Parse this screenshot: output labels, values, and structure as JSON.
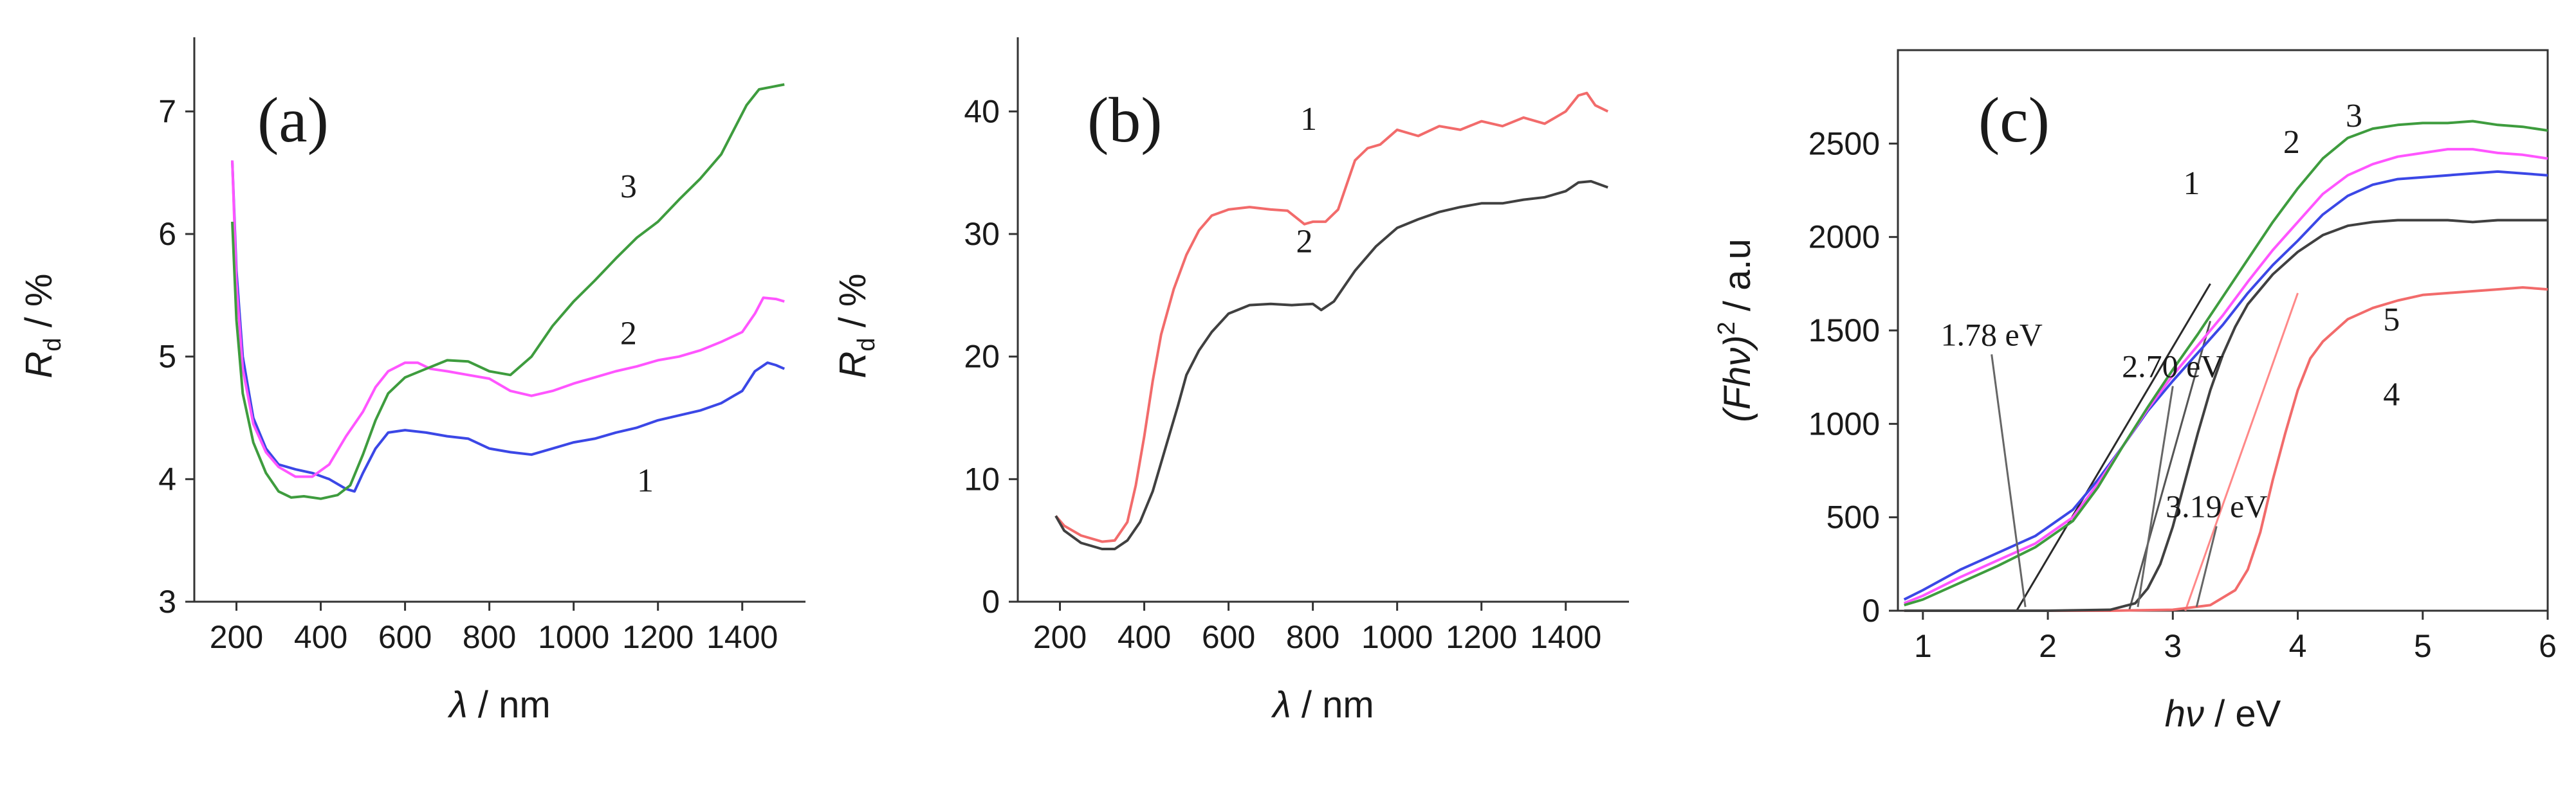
{
  "chart_data": [
    {
      "type": "line",
      "panel_label": "(a)",
      "xlabel": "λ / nm",
      "ylabel_main": "R",
      "ylabel_sub": "d",
      "ylabel_unit": " / %",
      "xlim": [
        100,
        1550
      ],
      "ylim": [
        3,
        7.5
      ],
      "xticks": [
        200,
        400,
        600,
        800,
        1000,
        1200,
        1400
      ],
      "yticks": [
        3,
        4,
        5,
        6,
        7
      ],
      "grid": false,
      "series": [
        {
          "name": "1",
          "color": "#3b47e6",
          "label_at": [
            1170,
            3.9
          ],
          "x": [
            190,
            200,
            215,
            240,
            270,
            300,
            340,
            380,
            420,
            460,
            480,
            500,
            530,
            560,
            600,
            650,
            700,
            750,
            800,
            850,
            900,
            950,
            1000,
            1050,
            1100,
            1150,
            1200,
            1250,
            1300,
            1350,
            1400,
            1430,
            1460,
            1480,
            1500
          ],
          "y": [
            6.6,
            5.7,
            5.0,
            4.5,
            4.25,
            4.12,
            4.08,
            4.05,
            4.0,
            3.92,
            3.9,
            4.05,
            4.25,
            4.38,
            4.4,
            4.38,
            4.35,
            4.33,
            4.25,
            4.22,
            4.2,
            4.25,
            4.3,
            4.33,
            4.38,
            4.42,
            4.48,
            4.52,
            4.56,
            4.62,
            4.72,
            4.88,
            4.95,
            4.93,
            4.9
          ]
        },
        {
          "name": "2",
          "color": "#ff55ff",
          "label_at": [
            1130,
            5.1
          ],
          "x": [
            190,
            200,
            215,
            240,
            270,
            300,
            340,
            380,
            420,
            460,
            500,
            530,
            560,
            600,
            630,
            660,
            700,
            750,
            800,
            850,
            900,
            950,
            1000,
            1050,
            1100,
            1150,
            1200,
            1250,
            1300,
            1350,
            1400,
            1430,
            1450,
            1480,
            1500
          ],
          "y": [
            6.6,
            5.6,
            4.9,
            4.45,
            4.22,
            4.1,
            4.02,
            4.02,
            4.12,
            4.35,
            4.55,
            4.75,
            4.88,
            4.95,
            4.95,
            4.9,
            4.88,
            4.85,
            4.82,
            4.72,
            4.68,
            4.72,
            4.78,
            4.83,
            4.88,
            4.92,
            4.97,
            5.0,
            5.05,
            5.12,
            5.2,
            5.35,
            5.48,
            5.47,
            5.45
          ]
        },
        {
          "name": "3",
          "color": "#3e9c3e",
          "label_at": [
            1130,
            6.3
          ],
          "x": [
            190,
            200,
            215,
            240,
            270,
            300,
            330,
            360,
            400,
            440,
            470,
            500,
            530,
            560,
            600,
            650,
            700,
            750,
            800,
            850,
            900,
            950,
            1000,
            1050,
            1100,
            1150,
            1200,
            1250,
            1300,
            1350,
            1380,
            1410,
            1440,
            1470,
            1500
          ],
          "y": [
            6.1,
            5.3,
            4.7,
            4.3,
            4.05,
            3.9,
            3.85,
            3.86,
            3.84,
            3.87,
            3.95,
            4.2,
            4.48,
            4.7,
            4.83,
            4.9,
            4.97,
            4.96,
            4.88,
            4.85,
            5.0,
            5.25,
            5.45,
            5.62,
            5.8,
            5.97,
            6.1,
            6.28,
            6.45,
            6.65,
            6.85,
            7.05,
            7.18,
            7.2,
            7.22
          ]
        }
      ]
    },
    {
      "type": "line",
      "panel_label": "(b)",
      "xlabel": "λ / nm",
      "ylabel_main": "R",
      "ylabel_sub": "d",
      "ylabel_unit": " / %",
      "xlim": [
        100,
        1550
      ],
      "ylim": [
        0,
        45
      ],
      "xticks": [
        200,
        400,
        600,
        800,
        1000,
        1200,
        1400
      ],
      "yticks": [
        0,
        10,
        20,
        30,
        40
      ],
      "grid": false,
      "series": [
        {
          "name": "1",
          "color": "#f26b6b",
          "label_at": [
            790,
            38.5
          ],
          "x": [
            190,
            210,
            250,
            300,
            330,
            360,
            380,
            400,
            420,
            440,
            470,
            500,
            530,
            560,
            600,
            650,
            700,
            740,
            780,
            800,
            830,
            860,
            880,
            900,
            930,
            960,
            1000,
            1050,
            1100,
            1150,
            1200,
            1250,
            1300,
            1350,
            1400,
            1430,
            1450,
            1470,
            1500
          ],
          "y": [
            7.0,
            6.2,
            5.4,
            4.9,
            5.0,
            6.5,
            9.5,
            13.5,
            18.0,
            21.8,
            25.5,
            28.3,
            30.3,
            31.5,
            32.0,
            32.2,
            32.0,
            31.9,
            30.8,
            31.0,
            31.0,
            32.0,
            34.0,
            36.0,
            37.0,
            37.3,
            38.5,
            38.0,
            38.8,
            38.5,
            39.2,
            38.8,
            39.5,
            39.0,
            40.0,
            41.3,
            41.5,
            40.5,
            40.0
          ]
        },
        {
          "name": "2",
          "color": "#404040",
          "label_at": [
            780,
            28.5
          ],
          "x": [
            190,
            210,
            250,
            300,
            330,
            360,
            390,
            420,
            450,
            480,
            500,
            530,
            560,
            600,
            650,
            700,
            750,
            800,
            820,
            850,
            880,
            900,
            950,
            1000,
            1050,
            1100,
            1150,
            1200,
            1250,
            1300,
            1350,
            1400,
            1430,
            1460,
            1500
          ],
          "y": [
            7.0,
            5.8,
            4.8,
            4.3,
            4.3,
            5.0,
            6.5,
            9.0,
            12.5,
            16.0,
            18.5,
            20.5,
            22.0,
            23.5,
            24.2,
            24.3,
            24.2,
            24.3,
            23.8,
            24.5,
            26.0,
            27.0,
            29.0,
            30.5,
            31.2,
            31.8,
            32.2,
            32.5,
            32.5,
            32.8,
            33.0,
            33.5,
            34.2,
            34.3,
            33.8
          ]
        }
      ]
    },
    {
      "type": "line",
      "panel_label": "(c)",
      "xlabel": "hν / eV",
      "ylabel_main": "(Fhν)",
      "ylabel_sup": "2",
      "ylabel_unit": " / a.u",
      "xlim": [
        0.8,
        6
      ],
      "ylim": [
        0,
        3000
      ],
      "xticks": [
        1,
        2,
        3,
        4,
        5,
        6
      ],
      "yticks": [
        0,
        500,
        1000,
        1500,
        2000,
        2500
      ],
      "grid": false,
      "series": [
        {
          "name": "1",
          "color": "#3b47e6",
          "label_at": [
            3.15,
            2230
          ],
          "x": [
            0.85,
            1.0,
            1.3,
            1.6,
            1.9,
            2.2,
            2.4,
            2.6,
            2.8,
            3.0,
            3.2,
            3.4,
            3.6,
            3.8,
            4.0,
            4.2,
            4.4,
            4.6,
            4.8,
            5.0,
            5.2,
            5.4,
            5.6,
            5.8,
            6.0
          ],
          "y": [
            60,
            110,
            220,
            310,
            400,
            540,
            700,
            880,
            1070,
            1230,
            1380,
            1530,
            1700,
            1850,
            1980,
            2120,
            2220,
            2280,
            2310,
            2320,
            2330,
            2340,
            2350,
            2340,
            2330
          ]
        },
        {
          "name": "2",
          "color": "#ff55ff",
          "label_at": [
            3.95,
            2450
          ],
          "x": [
            0.85,
            1.0,
            1.3,
            1.6,
            1.9,
            2.2,
            2.4,
            2.6,
            2.8,
            3.0,
            3.2,
            3.4,
            3.6,
            3.8,
            4.0,
            4.2,
            4.4,
            4.6,
            4.8,
            5.0,
            5.2,
            5.4,
            5.6,
            5.8,
            6.0
          ],
          "y": [
            40,
            80,
            180,
            270,
            360,
            500,
            680,
            880,
            1080,
            1260,
            1420,
            1580,
            1760,
            1930,
            2080,
            2230,
            2330,
            2390,
            2430,
            2450,
            2470,
            2470,
            2450,
            2440,
            2420
          ]
        },
        {
          "name": "3",
          "color": "#3e9c3e",
          "label_at": [
            4.45,
            2590
          ],
          "x": [
            0.85,
            1.0,
            1.3,
            1.6,
            1.9,
            2.2,
            2.4,
            2.6,
            2.8,
            3.0,
            3.2,
            3.4,
            3.6,
            3.8,
            4.0,
            4.2,
            4.4,
            4.6,
            4.8,
            5.0,
            5.2,
            5.4,
            5.6,
            5.8,
            6.0
          ],
          "y": [
            30,
            60,
            150,
            240,
            340,
            480,
            660,
            880,
            1090,
            1290,
            1480,
            1680,
            1880,
            2080,
            2260,
            2420,
            2530,
            2580,
            2600,
            2610,
            2610,
            2620,
            2600,
            2590,
            2570
          ]
        },
        {
          "name": "4",
          "color": "#f26b6b",
          "label_at": [
            4.75,
            1100
          ],
          "x": [
            0.85,
            1.5,
            2.0,
            2.5,
            3.0,
            3.3,
            3.5,
            3.6,
            3.7,
            3.8,
            3.9,
            4.0,
            4.1,
            4.2,
            4.4,
            4.6,
            4.8,
            5.0,
            5.2,
            5.4,
            5.6,
            5.8,
            6.0
          ],
          "y": [
            0,
            0,
            0,
            0,
            5,
            30,
            110,
            220,
            420,
            700,
            950,
            1180,
            1350,
            1440,
            1560,
            1620,
            1660,
            1690,
            1700,
            1710,
            1720,
            1730,
            1720
          ]
        },
        {
          "name": "5",
          "color": "#404040",
          "label_at": [
            4.75,
            1500
          ],
          "x": [
            0.85,
            1.5,
            2.0,
            2.5,
            2.7,
            2.8,
            2.9,
            3.0,
            3.1,
            3.2,
            3.3,
            3.4,
            3.5,
            3.6,
            3.8,
            4.0,
            4.2,
            4.4,
            4.6,
            4.8,
            5.0,
            5.2,
            5.4,
            5.6,
            5.8,
            6.0
          ],
          "y": [
            0,
            0,
            0,
            5,
            40,
            120,
            250,
            450,
            700,
            950,
            1180,
            1370,
            1520,
            1640,
            1800,
            1920,
            2010,
            2060,
            2080,
            2090,
            2090,
            2090,
            2080,
            2090,
            2090,
            2090
          ]
        }
      ],
      "annotations": [
        {
          "text": "1.78 eV",
          "at": [
            1.55,
            1420
          ],
          "arrow_to": [
            1.82,
            20
          ]
        },
        {
          "text": "2.70 eV",
          "at": [
            3.0,
            1250
          ],
          "arrow_to": [
            2.72,
            20
          ]
        },
        {
          "text": "3.19 eV",
          "at": [
            3.35,
            500
          ],
          "arrow_to": [
            3.19,
            20
          ]
        }
      ],
      "tangents": [
        {
          "color": "#2a2a2a",
          "from": [
            1.75,
            0
          ],
          "to": [
            3.3,
            1750
          ]
        },
        {
          "color": "#555555",
          "from": [
            2.65,
            0
          ],
          "to": [
            3.3,
            1550
          ]
        },
        {
          "color": "#ff8888",
          "from": [
            3.1,
            0
          ],
          "to": [
            4.0,
            1700
          ]
        }
      ]
    }
  ]
}
